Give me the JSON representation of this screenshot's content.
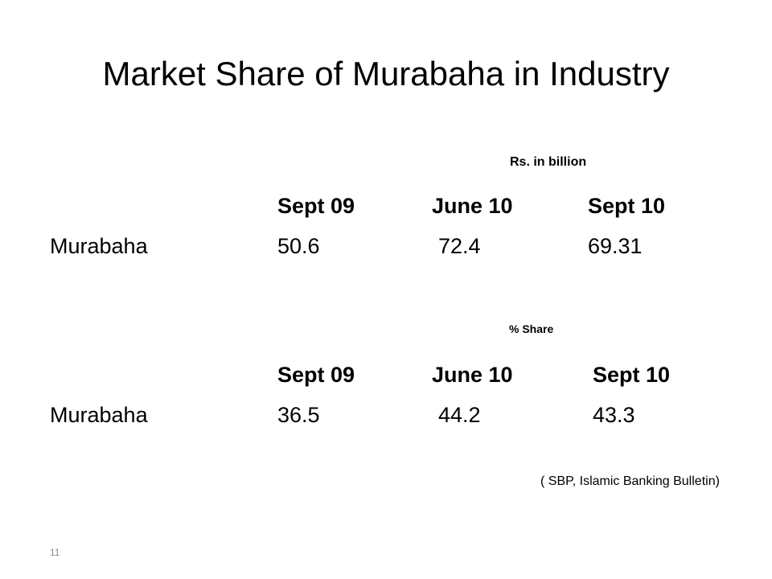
{
  "slide": {
    "title": "Market Share of Murabaha in Industry",
    "tables": [
      {
        "unit": "Rs. in billion",
        "columns": [
          "Sept 09",
          "June 10",
          "Sept 10"
        ],
        "rows": [
          {
            "label": "Murabaha",
            "values": [
              "50.6",
              "72.4",
              "69.31"
            ]
          }
        ]
      },
      {
        "unit": "% Share",
        "columns": [
          "Sept 09",
          "June 10",
          "Sept 10"
        ],
        "rows": [
          {
            "label": "Murabaha",
            "values": [
              "36.5",
              "44.2",
              "43.3"
            ]
          }
        ]
      }
    ],
    "source": "( SBP, Islamic Banking Bulletin)",
    "slide_number": "11"
  }
}
